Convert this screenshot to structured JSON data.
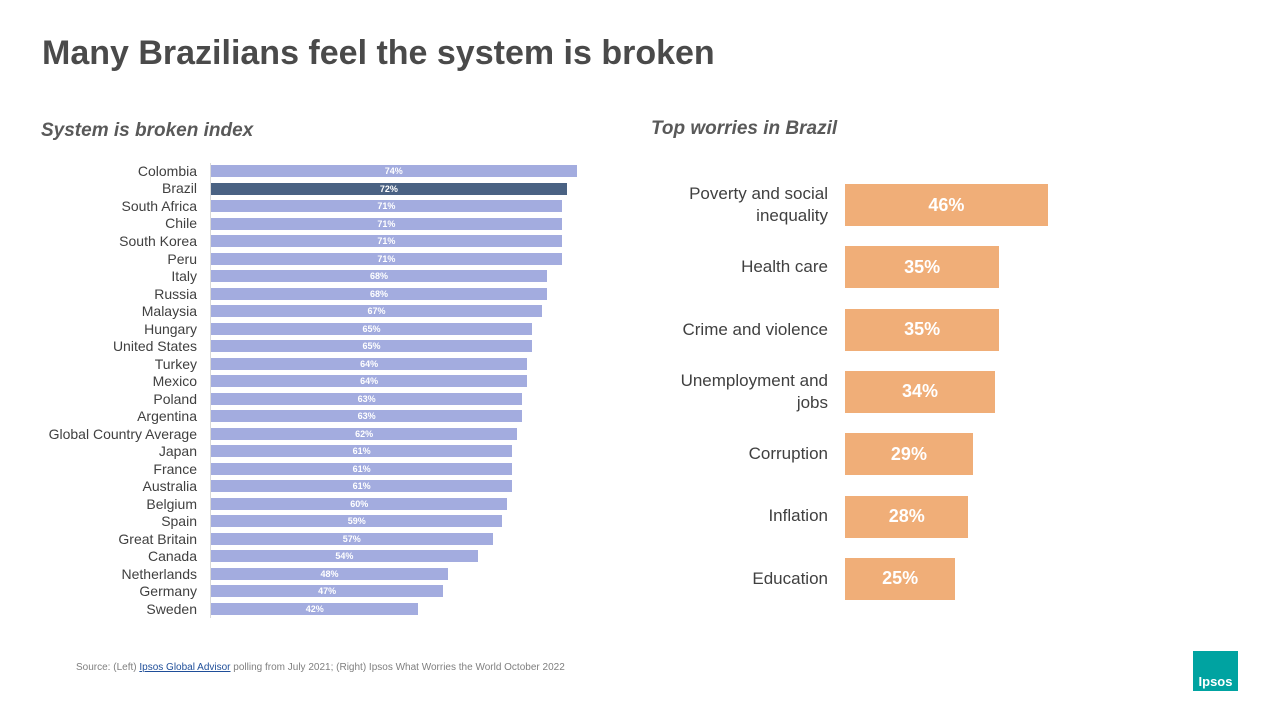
{
  "title": "Many Brazilians feel the system is broken",
  "chart_data": [
    {
      "type": "bar",
      "orientation": "horizontal",
      "title": "System is broken index",
      "categories": [
        "Colombia",
        "Brazil",
        "South Africa",
        "Chile",
        "South Korea",
        "Peru",
        "Italy",
        "Russia",
        "Malaysia",
        "Hungary",
        "United States",
        "Turkey",
        "Mexico",
        "Poland",
        "Argentina",
        "Global Country Average",
        "Japan",
        "France",
        "Australia",
        "Belgium",
        "Spain",
        "Great Britain",
        "Canada",
        "Netherlands",
        "Germany",
        "Sweden"
      ],
      "values": [
        74,
        72,
        71,
        71,
        71,
        71,
        68,
        68,
        67,
        65,
        65,
        64,
        64,
        63,
        63,
        62,
        61,
        61,
        61,
        60,
        59,
        57,
        54,
        48,
        47,
        42
      ],
      "value_labels": [
        "74%",
        "72%",
        "71%",
        "71%",
        "71%",
        "71%",
        "68%",
        "68%",
        "67%",
        "65%",
        "65%",
        "64%",
        "64%",
        "63%",
        "63%",
        "62%",
        "61%",
        "61%",
        "61%",
        "60%",
        "59%",
        "57%",
        "54%",
        "48%",
        "47%",
        "42%"
      ],
      "colors": [
        "#a3acdf",
        "#4a6283",
        "#a3acdf",
        "#a3acdf",
        "#a3acdf",
        "#a3acdf",
        "#a3acdf",
        "#a3acdf",
        "#a3acdf",
        "#a3acdf",
        "#a3acdf",
        "#a3acdf",
        "#a3acdf",
        "#a3acdf",
        "#a3acdf",
        "#a3acdf",
        "#a3acdf",
        "#a3acdf",
        "#a3acdf",
        "#a3acdf",
        "#a3acdf",
        "#a3acdf",
        "#a3acdf",
        "#a3acdf",
        "#a3acdf",
        "#a3acdf"
      ]
    },
    {
      "type": "bar",
      "orientation": "horizontal",
      "title": "Top worries in Brazil",
      "categories": [
        "Poverty and social inequality",
        "Health care",
        "Crime and violence",
        "Unemployment and jobs",
        "Corruption",
        "Inflation",
        "Education"
      ],
      "values": [
        46,
        35,
        35,
        34,
        29,
        28,
        25
      ],
      "value_labels": [
        "46%",
        "35%",
        "35%",
        "34%",
        "29%",
        "28%",
        "25%"
      ],
      "color": "#f0ae78"
    }
  ],
  "source": {
    "prefix": "Source: (Left) ",
    "link": "Ipsos Global Advisor",
    "suffix": " polling from July 2021; (Right) Ipsos What Worries the World October 2022"
  },
  "logo": "Ipsos"
}
